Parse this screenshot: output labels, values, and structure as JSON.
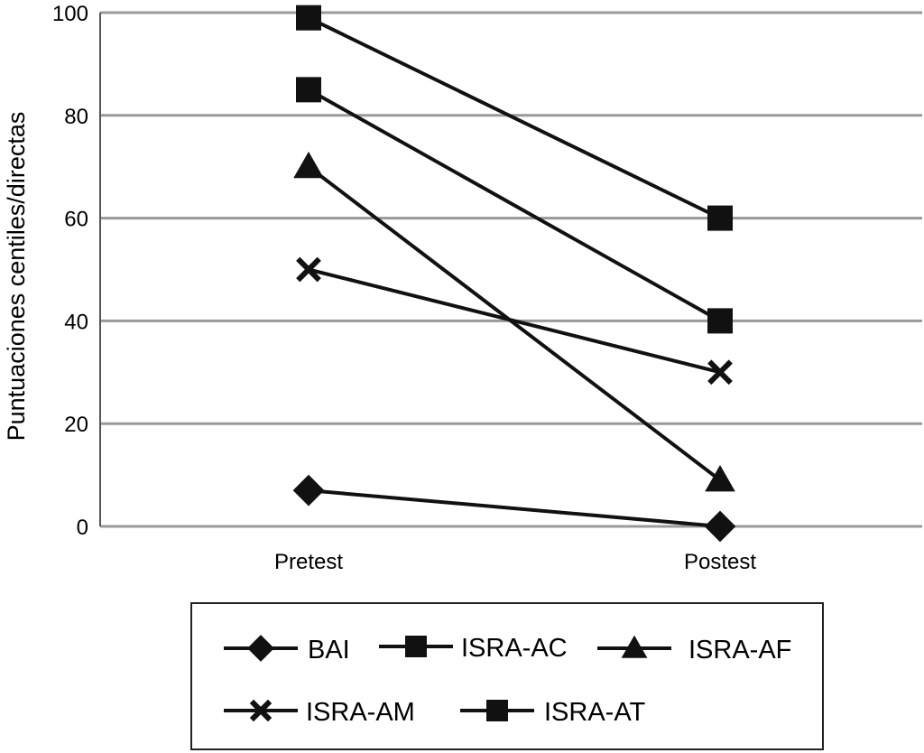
{
  "chart_data": {
    "type": "line",
    "categories": [
      "Pretest",
      "Postest"
    ],
    "ylabel": "Puntuaciones centiles/directas",
    "ylim": [
      0,
      100
    ],
    "yticks": [
      0,
      20,
      40,
      60,
      80,
      100
    ],
    "grid": true,
    "legend_position": "bottom",
    "series": [
      {
        "name": "BAI",
        "marker": "diamond",
        "values": [
          7,
          0
        ]
      },
      {
        "name": "ISRA-AC",
        "marker": "square",
        "values": [
          85,
          40
        ]
      },
      {
        "name": "ISRA-AF",
        "marker": "triangle",
        "values": [
          70,
          9
        ]
      },
      {
        "name": "ISRA-AM",
        "marker": "x",
        "values": [
          50,
          30
        ]
      },
      {
        "name": "ISRA-AT",
        "marker": "square",
        "values": [
          99,
          60
        ]
      }
    ],
    "colors": {
      "line": "#111111",
      "grid": "#9a9a9a",
      "axis": "#555555"
    }
  }
}
